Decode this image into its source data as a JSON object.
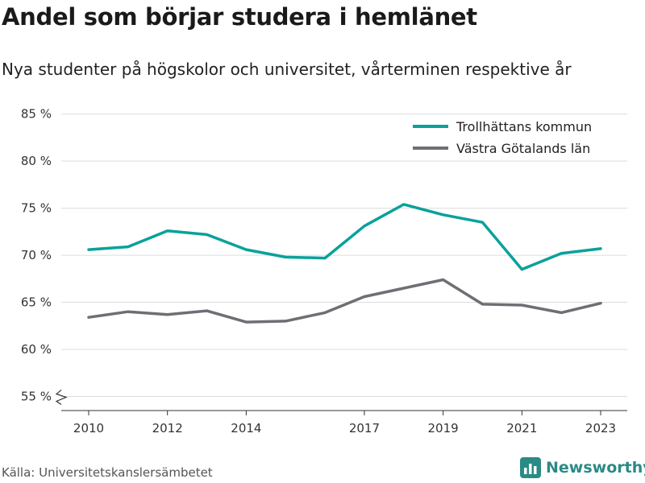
{
  "title": "Andel som börjar studera i hemlänet",
  "subtitle": "Nya studenter på högskolor och universitet, vårterminen respektive år",
  "source": "Källa: Universitetskanslersämbetet",
  "brand": "Newsworthy",
  "colors": {
    "teal": "#0aa19a",
    "gray": "#6f6e74",
    "brand": "#2a8a86"
  },
  "chart_data": {
    "type": "line",
    "x": [
      2010,
      2011,
      2012,
      2013,
      2014,
      2015,
      2016,
      2017,
      2018,
      2019,
      2020,
      2021,
      2022,
      2023
    ],
    "xticks": [
      2010,
      2012,
      2014,
      2017,
      2019,
      2021,
      2023
    ],
    "yticks": [
      55,
      60,
      65,
      70,
      75,
      80,
      85
    ],
    "ytick_labels": [
      "55 %",
      "60 %",
      "65 %",
      "70 %",
      "75 %",
      "80 %",
      "85 %"
    ],
    "ylim": [
      53.5,
      86
    ],
    "axis_break": true,
    "legend_position": "top-right",
    "series": [
      {
        "name": "Trollhättans kommun",
        "color": "#0aa19a",
        "values": [
          70.6,
          70.9,
          72.6,
          72.2,
          70.6,
          69.8,
          69.7,
          73.1,
          75.4,
          74.3,
          73.5,
          68.5,
          70.2,
          70.7
        ]
      },
      {
        "name": "Västra Götalands län",
        "color": "#6f6e74",
        "values": [
          63.4,
          64.0,
          63.7,
          64.1,
          62.9,
          63.0,
          63.9,
          65.6,
          66.5,
          67.4,
          64.8,
          64.7,
          63.9,
          64.9
        ]
      }
    ]
  }
}
